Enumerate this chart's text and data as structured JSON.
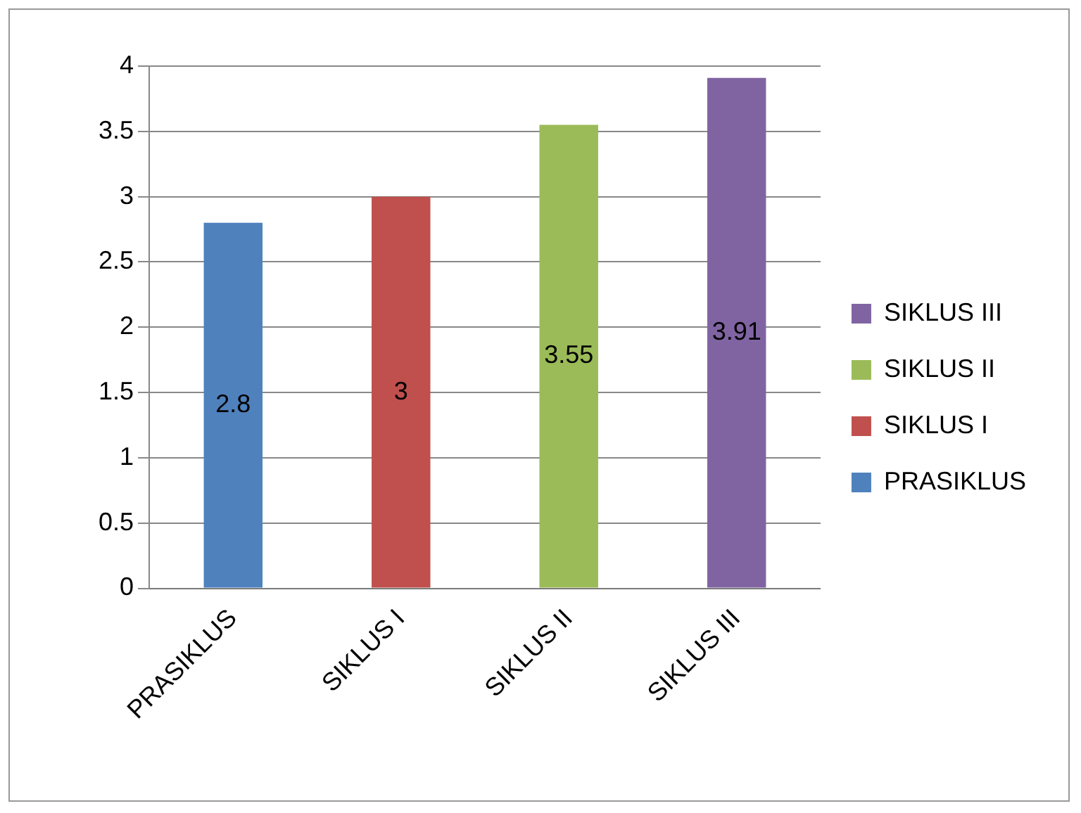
{
  "chart_data": {
    "type": "bar",
    "categories": [
      "PRASIKLUS",
      "SIKLUS I",
      "SIKLUS II",
      "SIKLUS III"
    ],
    "series": [
      {
        "name": "PRASIKLUS",
        "color": "#4f81bd",
        "values": [
          2.8,
          null,
          null,
          null
        ]
      },
      {
        "name": "SIKLUS I",
        "color": "#c0504d",
        "values": [
          null,
          3,
          null,
          null
        ]
      },
      {
        "name": "SIKLUS II",
        "color": "#9bbb59",
        "values": [
          null,
          null,
          3.55,
          null
        ]
      },
      {
        "name": "SIKLUS III",
        "color": "#8064a2",
        "values": [
          null,
          null,
          null,
          3.91
        ]
      }
    ],
    "ylim": [
      0,
      4
    ],
    "yticks": [
      0,
      0.5,
      1,
      1.5,
      2,
      2.5,
      3,
      3.5,
      4
    ],
    "grid": "y",
    "legend": "right",
    "data_labels": true
  }
}
